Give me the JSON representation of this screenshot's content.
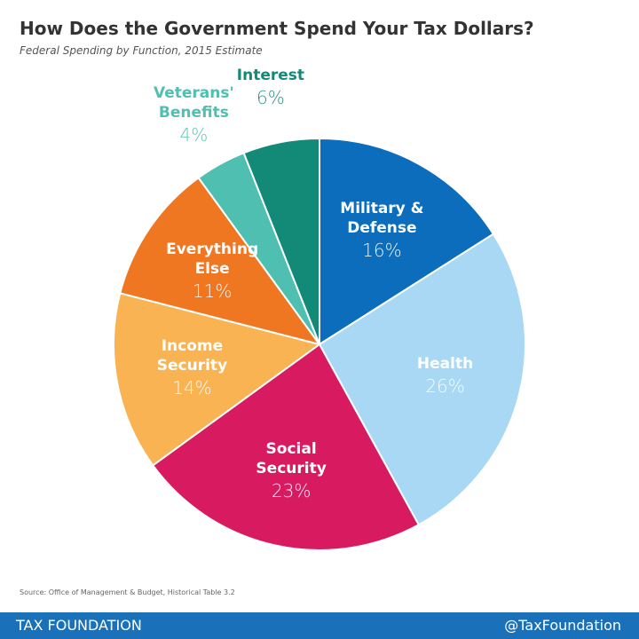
{
  "chart_data": {
    "type": "pie",
    "title": "How Does the Government Spend Your Tax Dollars?",
    "subtitle": "Federal Spending by Function, 2015 Estimate",
    "categories": [
      "Military & Defense",
      "Health",
      "Social Security",
      "Income Security",
      "Everything Else",
      "Veterans' Benefits",
      "Interest"
    ],
    "values": [
      16,
      26,
      23,
      14,
      11,
      4,
      6
    ],
    "value_labels": [
      "16%",
      "26%",
      "23%",
      "14%",
      "11%",
      "4%",
      "6%"
    ],
    "colors": [
      "#0b6dbc",
      "#a9d8f4",
      "#d81b60",
      "#f9b353",
      "#f07722",
      "#4fbfb1",
      "#138a78"
    ],
    "source": "Source: Office of Management & Budget, Historical Table 3.2",
    "footer_left": "TAX FOUNDATION",
    "footer_right": "@TaxFoundation"
  }
}
